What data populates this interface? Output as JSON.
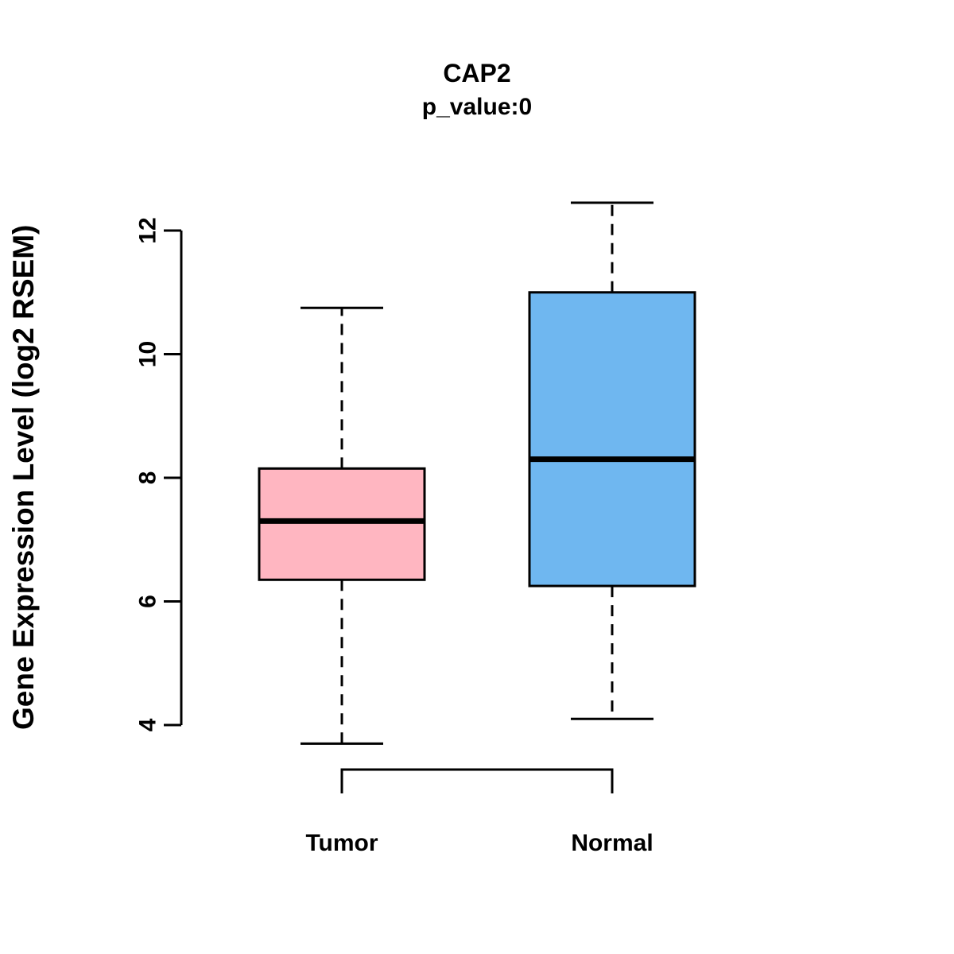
{
  "chart_data": {
    "type": "boxplot",
    "title": "CAP2",
    "subtitle": "p_value:0",
    "ylabel": "Gene Expression Level (log2 RSEM)",
    "ylim": [
      4,
      12
    ],
    "yticks": [
      4,
      6,
      8,
      10,
      12
    ],
    "categories": [
      "Tumor",
      "Normal"
    ],
    "series": [
      {
        "name": "Tumor",
        "color": "#FFB6C1",
        "min": 3.7,
        "q1": 6.35,
        "median": 7.3,
        "q3": 8.15,
        "max": 10.75
      },
      {
        "name": "Normal",
        "color": "#6FB7F0",
        "min": 4.1,
        "q1": 6.25,
        "median": 8.3,
        "q3": 11.0,
        "max": 12.45
      }
    ],
    "legend": "none",
    "grid": "off"
  }
}
